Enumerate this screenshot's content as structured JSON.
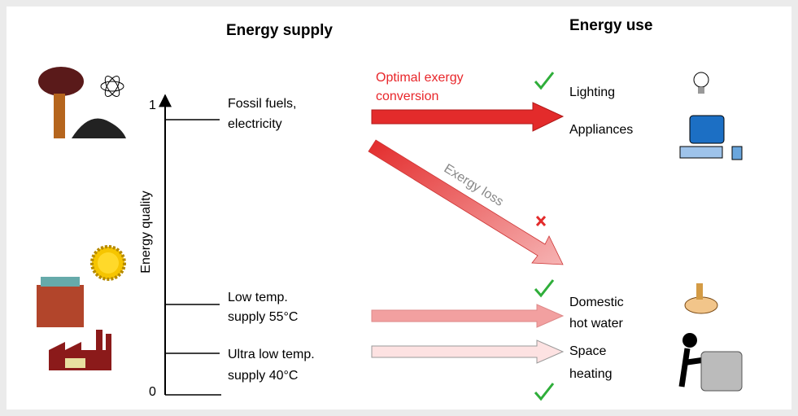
{
  "header": {
    "supply_title": "Energy supply",
    "use_title": "Energy use"
  },
  "axis": {
    "label": "Energy quality",
    "top": 1,
    "bottom": 0
  },
  "supply": [
    {
      "lines": [
        "Fossil fuels,",
        "electricity"
      ]
    },
    {
      "lines": [
        "Low temp.",
        "supply 55°C"
      ]
    },
    {
      "lines": [
        "Ultra low temp.",
        "supply 40°C"
      ]
    }
  ],
  "uses": [
    {
      "lines": [
        "Lighting"
      ]
    },
    {
      "lines": [
        "Appliances"
      ]
    },
    {
      "lines": [
        "Domestic",
        "hot water"
      ]
    },
    {
      "lines": [
        "Space",
        "heating"
      ]
    }
  ],
  "annotations": {
    "optimal": [
      "Optimal exergy",
      "conversion"
    ],
    "loss": "Exergy loss"
  }
}
